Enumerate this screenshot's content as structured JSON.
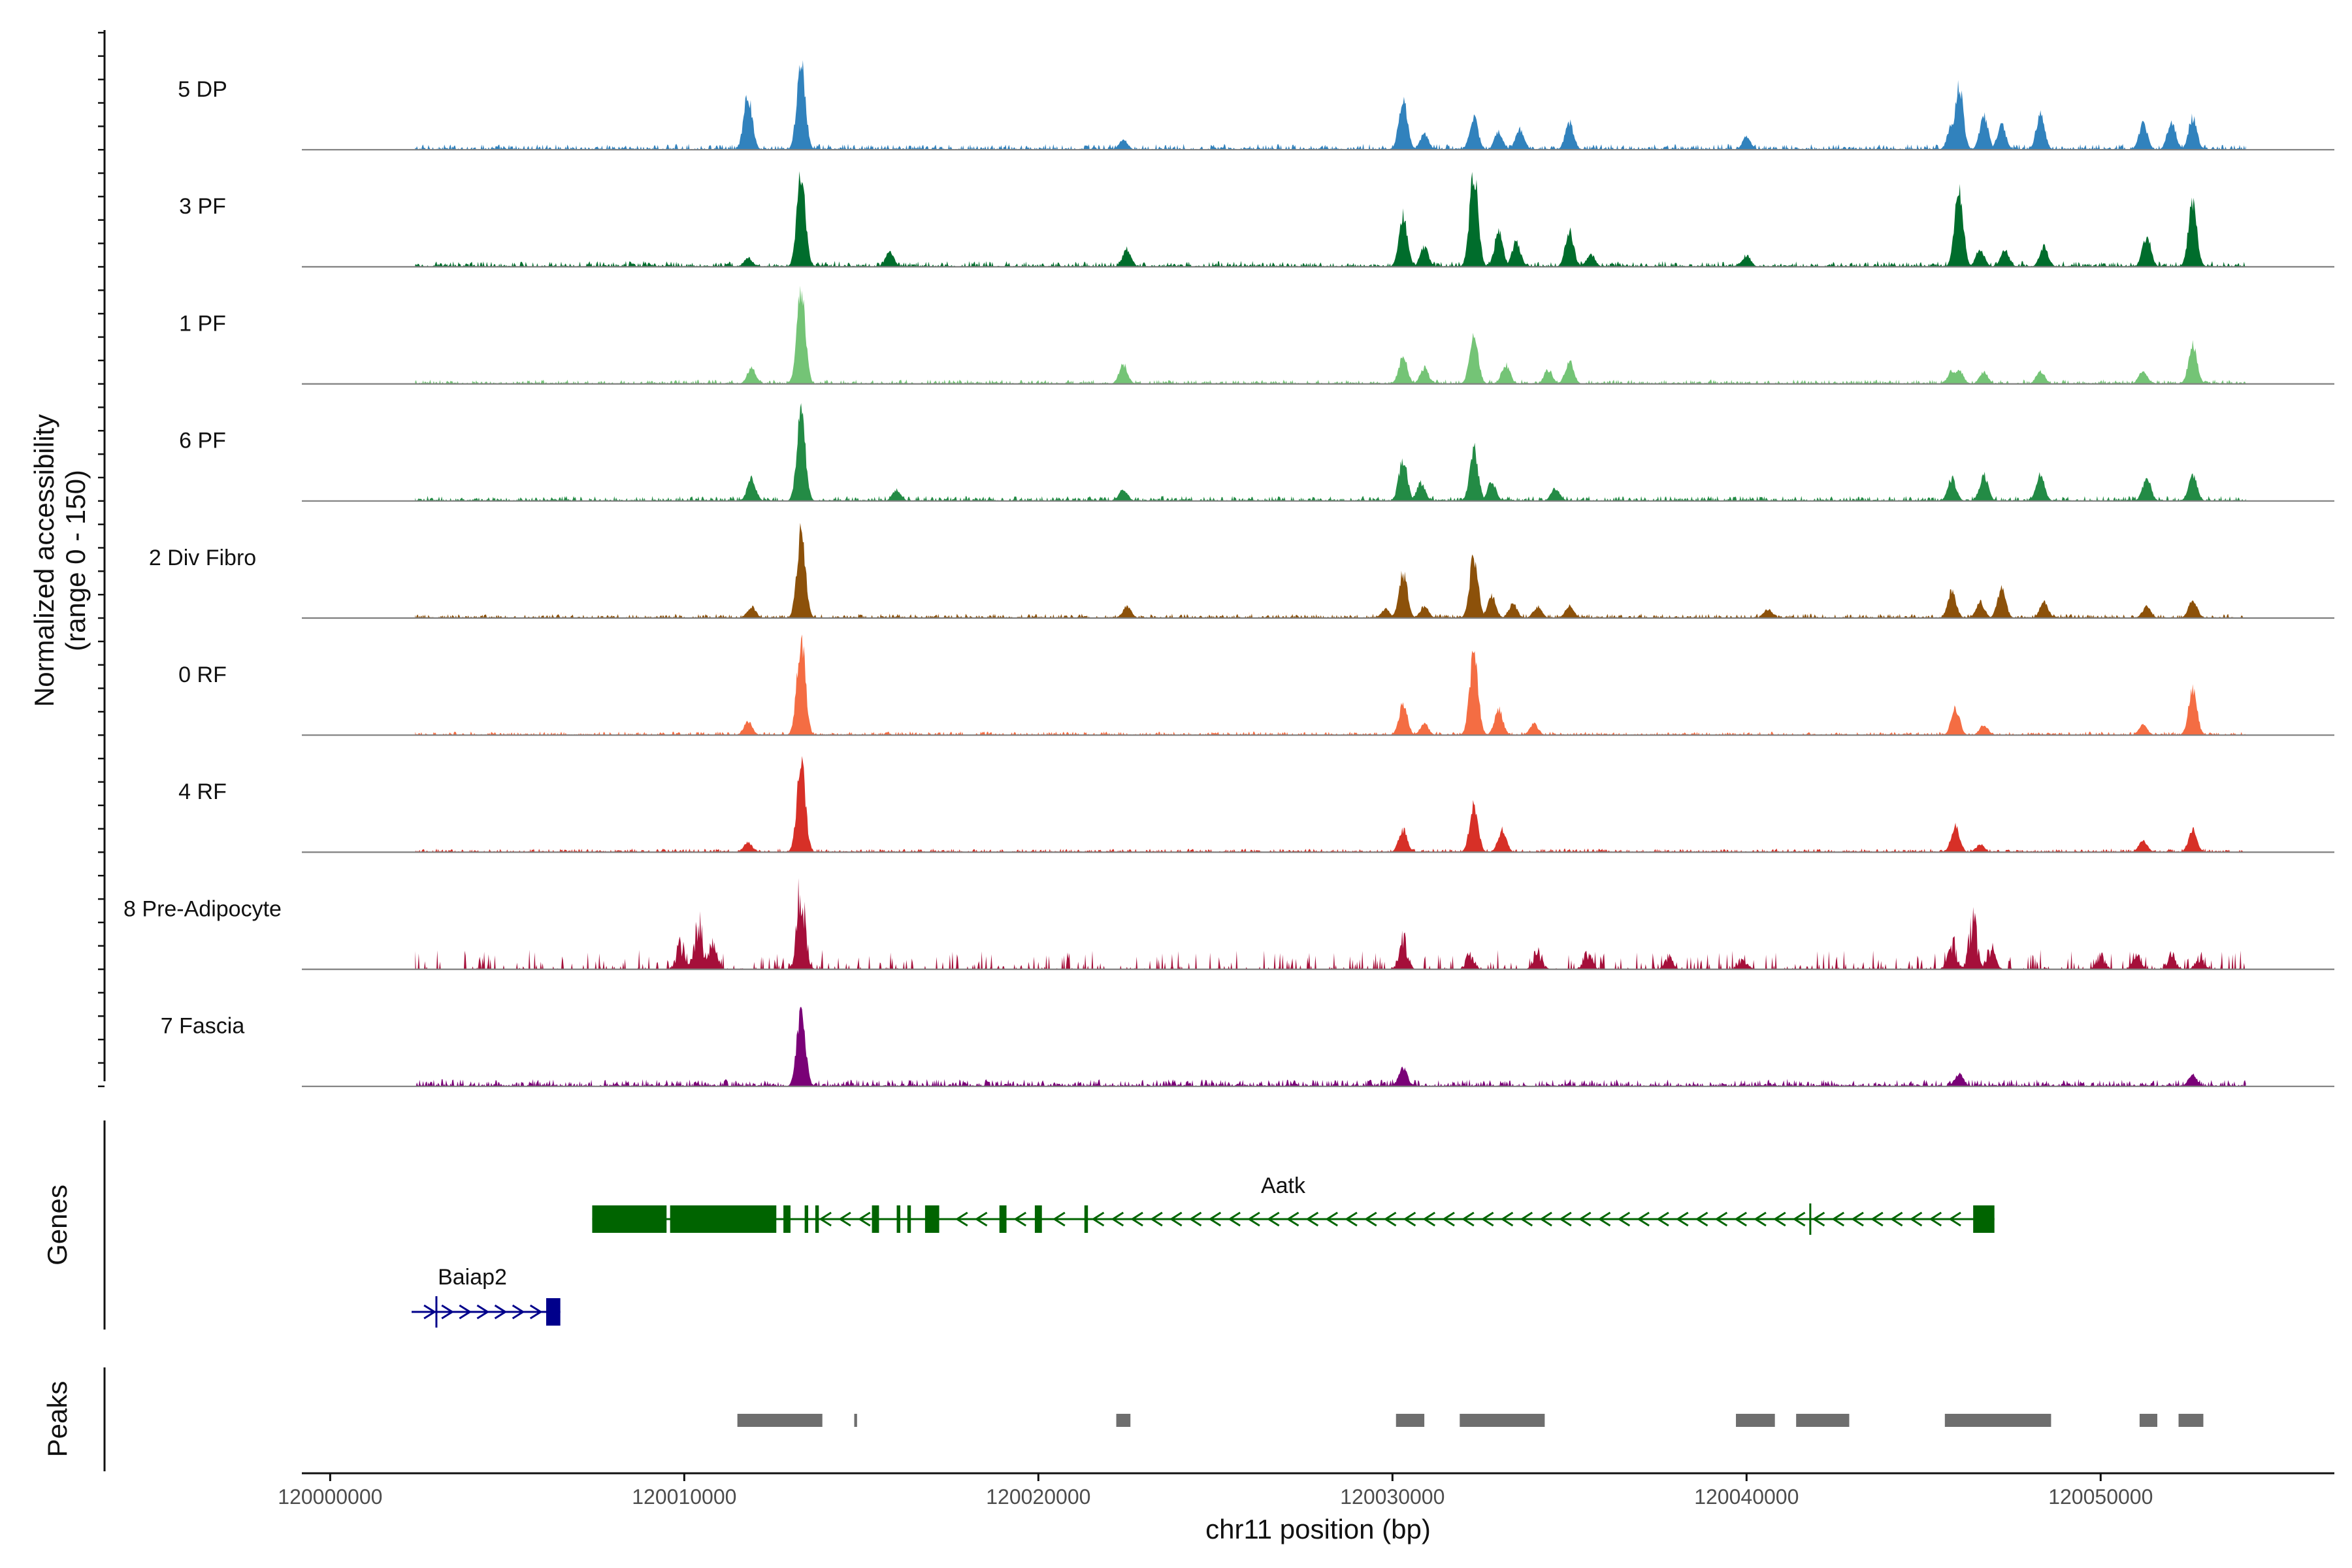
{
  "chart_data": {
    "type": "area",
    "title": "",
    "y_axis_label_line1": "Normalized accessibility",
    "y_axis_label_line2": "(range 0 - 150)",
    "ylim": [
      0,
      150
    ],
    "xlabel": "chr11 position (bp)",
    "xlim": [
      119999200,
      120056600
    ],
    "x_ticks": [
      120000000,
      120010000,
      120020000,
      120030000,
      120040000,
      120050000
    ],
    "x_tick_labels": [
      "120000000",
      "120010000",
      "120020000",
      "120030000",
      "120040000",
      "120050000"
    ],
    "data_start": 120002400,
    "data_end": 120054100,
    "tracks": [
      {
        "name": "5 DP",
        "color": "#3182BD",
        "noise": 8,
        "style": "smooth",
        "peaks": [
          [
            120011800,
            85
          ],
          [
            120013300,
            135
          ],
          [
            120022400,
            16
          ],
          [
            120030300,
            80
          ],
          [
            120030900,
            25
          ],
          [
            120032300,
            50
          ],
          [
            120033000,
            28
          ],
          [
            120033600,
            32
          ],
          [
            120035000,
            42
          ],
          [
            120040000,
            20
          ],
          [
            120045800,
            40
          ],
          [
            120046000,
            100
          ],
          [
            120046700,
            52
          ],
          [
            120047200,
            38
          ],
          [
            120048300,
            55
          ],
          [
            120051200,
            40
          ],
          [
            120052000,
            45
          ],
          [
            120052600,
            50
          ]
        ]
      },
      {
        "name": "3 PF",
        "color": "#006D2C",
        "noise": 8,
        "style": "smooth",
        "peaks": [
          [
            120011800,
            14
          ],
          [
            120013300,
            140
          ],
          [
            120015800,
            22
          ],
          [
            120022500,
            28
          ],
          [
            120030300,
            80
          ],
          [
            120030900,
            30
          ],
          [
            120032300,
            150
          ],
          [
            120033000,
            55
          ],
          [
            120033500,
            40
          ],
          [
            120035000,
            55
          ],
          [
            120035600,
            20
          ],
          [
            120040000,
            18
          ],
          [
            120046000,
            120
          ],
          [
            120046600,
            28
          ],
          [
            120047300,
            25
          ],
          [
            120048400,
            32
          ],
          [
            120051300,
            48
          ],
          [
            120052600,
            100
          ]
        ]
      },
      {
        "name": "1 PF",
        "color": "#74C476",
        "noise": 6,
        "style": "smooth",
        "peaks": [
          [
            120011900,
            25
          ],
          [
            120013300,
            150
          ],
          [
            120022400,
            30
          ],
          [
            120030300,
            42
          ],
          [
            120030900,
            25
          ],
          [
            120032300,
            80
          ],
          [
            120033200,
            30
          ],
          [
            120034400,
            22
          ],
          [
            120035000,
            35
          ],
          [
            120045800,
            20
          ],
          [
            120046000,
            22
          ],
          [
            120046700,
            18
          ],
          [
            120048300,
            20
          ],
          [
            120051200,
            22
          ],
          [
            120052600,
            60
          ]
        ]
      },
      {
        "name": "6 PF",
        "color": "#238B45",
        "noise": 7,
        "style": "smooth",
        "peaks": [
          [
            120011900,
            35
          ],
          [
            120013300,
            135
          ],
          [
            120016000,
            18
          ],
          [
            120022400,
            18
          ],
          [
            120030300,
            65
          ],
          [
            120030800,
            28
          ],
          [
            120032300,
            80
          ],
          [
            120032800,
            30
          ],
          [
            120034600,
            20
          ],
          [
            120045800,
            35
          ],
          [
            120046700,
            40
          ],
          [
            120048300,
            40
          ],
          [
            120051300,
            35
          ],
          [
            120052600,
            40
          ]
        ]
      },
      {
        "name": "2 Div Fibro",
        "color": "#8C510A",
        "noise": 6,
        "style": "smooth",
        "peaks": [
          [
            120011900,
            18
          ],
          [
            120013300,
            130
          ],
          [
            120022500,
            18
          ],
          [
            120029800,
            14
          ],
          [
            120030300,
            70
          ],
          [
            120030900,
            18
          ],
          [
            120032300,
            95
          ],
          [
            120032800,
            35
          ],
          [
            120033400,
            22
          ],
          [
            120034100,
            18
          ],
          [
            120035000,
            20
          ],
          [
            120040600,
            14
          ],
          [
            120045800,
            42
          ],
          [
            120046600,
            25
          ],
          [
            120047200,
            45
          ],
          [
            120048400,
            25
          ],
          [
            120051300,
            18
          ],
          [
            120052600,
            30
          ]
        ]
      },
      {
        "name": "0 RF",
        "color": "#F46D43",
        "noise": 5,
        "style": "smooth",
        "peaks": [
          [
            120011800,
            22
          ],
          [
            120013300,
            150
          ],
          [
            120030300,
            48
          ],
          [
            120030900,
            18
          ],
          [
            120032300,
            125
          ],
          [
            120033000,
            40
          ],
          [
            120034000,
            18
          ],
          [
            120045900,
            42
          ],
          [
            120046700,
            16
          ],
          [
            120051200,
            16
          ],
          [
            120052600,
            70
          ]
        ]
      },
      {
        "name": "4 RF",
        "color": "#D73027",
        "noise": 5,
        "style": "smooth",
        "peaks": [
          [
            120011800,
            15
          ],
          [
            120013300,
            140
          ],
          [
            120030300,
            35
          ],
          [
            120032300,
            72
          ],
          [
            120033100,
            35
          ],
          [
            120045900,
            42
          ],
          [
            120046600,
            12
          ],
          [
            120051200,
            18
          ],
          [
            120052600,
            35
          ]
        ]
      },
      {
        "name": "8 Pre-Adipocyte",
        "color": "#A50F3A",
        "noise": 22,
        "style": "spiky",
        "peaks": [
          [
            120009900,
            48
          ],
          [
            120010400,
            90
          ],
          [
            120010800,
            55
          ],
          [
            120013300,
            150
          ],
          [
            120030300,
            55
          ],
          [
            120032200,
            28
          ],
          [
            120034100,
            35
          ],
          [
            120035500,
            30
          ],
          [
            120037800,
            22
          ],
          [
            120039900,
            22
          ],
          [
            120045800,
            55
          ],
          [
            120046400,
            85
          ],
          [
            120046900,
            42
          ],
          [
            120050000,
            26
          ],
          [
            120051000,
            28
          ],
          [
            120052000,
            26
          ],
          [
            120052800,
            24
          ]
        ]
      },
      {
        "name": "7 Fascia",
        "color": "#7A0177",
        "noise": 10,
        "style": "smooth",
        "peaks": [
          [
            120013300,
            120
          ],
          [
            120030300,
            30
          ],
          [
            120046000,
            20
          ],
          [
            120052600,
            18
          ]
        ]
      }
    ],
    "genes": [
      {
        "name": "Aatk",
        "color": "#006400",
        "start": 120007400,
        "end": 120047000,
        "strand": "-",
        "exons": [
          [
            120007400,
            120009500
          ],
          [
            120009600,
            120012600
          ],
          [
            120012800,
            120013000
          ],
          [
            120013400,
            120013500
          ],
          [
            120013700,
            120013800
          ],
          [
            120015300,
            120015500
          ],
          [
            120016000,
            120016100
          ],
          [
            120016300,
            120016400
          ],
          [
            120016800,
            120017200
          ],
          [
            120018900,
            120019100
          ],
          [
            120019900,
            120020100
          ],
          [
            120021300,
            120021400
          ],
          [
            120046400,
            120047000
          ]
        ],
        "introns_marks": [
          120041800
        ]
      },
      {
        "name": "Baiap2",
        "color": "#00008B",
        "start": 120002300,
        "end": 120006500,
        "strand": "+",
        "exons": [
          [
            120006100,
            120006500
          ]
        ],
        "introns_marks": [
          120003000
        ]
      }
    ],
    "peaks_track": {
      "color": "#6E6E6E",
      "regions": [
        [
          120011500,
          120013900
        ],
        [
          120014800,
          120014880
        ],
        [
          120022200,
          120022600
        ],
        [
          120030100,
          120030900
        ],
        [
          120031900,
          120034300
        ],
        [
          120039700,
          120040800
        ],
        [
          120041400,
          120042900
        ],
        [
          120045600,
          120048600
        ],
        [
          120051100,
          120051600
        ],
        [
          120052200,
          120052900
        ]
      ]
    },
    "panel_labels": {
      "genes": "Genes",
      "peaks": "Peaks"
    }
  }
}
